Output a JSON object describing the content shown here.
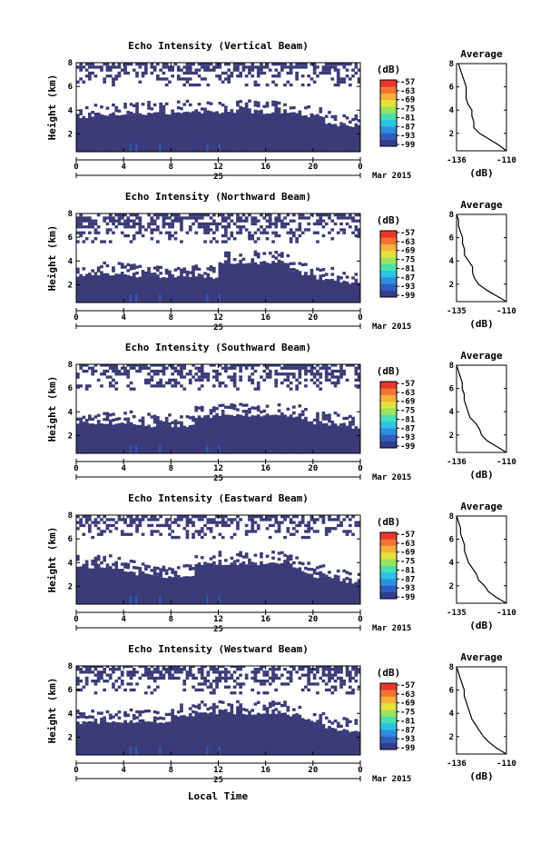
{
  "figure": {
    "x_axis_label": "Local Time",
    "date_label": "Mar 2015",
    "day_label": "25",
    "time_ticks": [
      "0",
      "4",
      "8",
      "12",
      "16",
      "20",
      "0"
    ],
    "height_ticks": [
      "2",
      "4",
      "6",
      "8"
    ],
    "height_label": "Height (km)",
    "colorbar_unit": "(dB)",
    "colorbar_ticks": [
      "-57",
      "-63",
      "-69",
      "-75",
      "-81",
      "-87",
      "-93",
      "-99"
    ],
    "average_title": "Average",
    "average_unit": "(dB)",
    "colors": {
      "echo": "#3a3b78",
      "colormap": [
        "#323d8e",
        "#2f5dbf",
        "#2c8fe0",
        "#2bc3e6",
        "#47e0b0",
        "#9be35b",
        "#e3e23b",
        "#f6b13a",
        "#f4742f",
        "#e8362a"
      ]
    }
  },
  "chart_data": [
    {
      "type": "heatmap",
      "title": "Echo Intensity (Vertical Beam)",
      "average_ticks": [
        "-136",
        "-110"
      ],
      "xlim": [
        0,
        24
      ],
      "ylim": [
        0.5,
        8
      ],
      "zlim": [
        -99,
        -57
      ],
      "low_layer_top_km": [
        3.4,
        3.5,
        3.5,
        3.6,
        3.6,
        3.6,
        3.7,
        3.7,
        3.8,
        3.8,
        3.8,
        3.8,
        3.8,
        3.8,
        3.8,
        3.8,
        3.8,
        3.8,
        3.7,
        3.5,
        3.2,
        2.9,
        2.7,
        2.6,
        2.6
      ],
      "upper_layer_km": [
        6.0,
        8.0
      ],
      "average_profile": {
        "height_km": [
          0.5,
          1,
          1.5,
          2,
          2.5,
          3,
          3.5,
          4,
          4.5,
          5,
          5.5,
          6,
          6.5,
          7,
          7.5,
          8
        ],
        "db": [
          -110,
          -114,
          -119,
          -124,
          -127,
          -127,
          -128,
          -128,
          -130,
          -131,
          -131,
          -131,
          -132,
          -133,
          -134,
          -135
        ]
      }
    },
    {
      "type": "heatmap",
      "title": "Echo Intensity (Northward Beam)",
      "average_ticks": [
        "-135",
        "-110"
      ],
      "xlim": [
        0,
        24
      ],
      "ylim": [
        0.5,
        8
      ],
      "zlim": [
        -99,
        -57
      ],
      "low_layer_top_km": [
        2.8,
        2.9,
        2.9,
        2.9,
        2.8,
        2.7,
        2.7,
        2.6,
        2.6,
        2.6,
        2.6,
        2.6,
        3.8,
        3.8,
        3.8,
        3.8,
        3.8,
        3.8,
        3.2,
        2.9,
        2.5,
        2.4,
        2.3,
        2.2,
        2.2
      ],
      "upper_layer_km": [
        5.5,
        8.0
      ],
      "average_profile": {
        "height_km": [
          0.5,
          1,
          1.5,
          2,
          2.5,
          3,
          3.5,
          4,
          4.5,
          5,
          5.5,
          6,
          6.5,
          7,
          7.5,
          8
        ],
        "db": [
          -110,
          -115,
          -120,
          -124,
          -126,
          -127,
          -127,
          -129,
          -131,
          -131,
          -132,
          -132,
          -133,
          -134,
          -134,
          -135
        ]
      }
    },
    {
      "type": "heatmap",
      "title": "Echo Intensity (Southward Beam)",
      "average_ticks": [
        "-136",
        "-110"
      ],
      "xlim": [
        0,
        24
      ],
      "ylim": [
        0.5,
        8
      ],
      "zlim": [
        -99,
        -57
      ],
      "low_layer_top_km": [
        2.9,
        3.0,
        3.0,
        3.0,
        3.0,
        2.9,
        2.8,
        2.8,
        2.8,
        2.8,
        3.6,
        3.6,
        3.7,
        3.7,
        3.7,
        3.7,
        3.7,
        3.7,
        3.6,
        3.3,
        3.0,
        2.9,
        2.8,
        2.7,
        2.7
      ],
      "upper_layer_km": [
        5.8,
        8.0
      ],
      "average_profile": {
        "height_km": [
          0.5,
          1,
          1.5,
          2,
          2.5,
          3,
          3.5,
          4,
          4.5,
          5,
          5.5,
          6,
          6.5,
          7,
          7.5,
          8
        ],
        "db": [
          -110,
          -115,
          -120,
          -123,
          -124,
          -126,
          -129,
          -130,
          -131,
          -132,
          -132,
          -133,
          -133,
          -134,
          -135,
          -136
        ]
      }
    },
    {
      "type": "heatmap",
      "title": "Echo Intensity (Eastward Beam)",
      "average_ticks": [
        "-135",
        "-110"
      ],
      "xlim": [
        0,
        24
      ],
      "ylim": [
        0.5,
        8
      ],
      "zlim": [
        -99,
        -57
      ],
      "low_layer_top_km": [
        3.6,
        3.6,
        3.6,
        3.6,
        3.2,
        3.0,
        2.9,
        2.8,
        2.8,
        2.8,
        3.9,
        3.9,
        3.9,
        3.9,
        3.9,
        3.9,
        3.9,
        3.9,
        3.6,
        3.1,
        2.8,
        2.6,
        2.4,
        2.3,
        2.3
      ],
      "upper_layer_km": [
        6.0,
        8.0
      ],
      "average_profile": {
        "height_km": [
          0.5,
          1,
          1.5,
          2,
          2.5,
          3,
          3.5,
          4,
          4.5,
          5,
          5.5,
          6,
          6.5,
          7,
          7.5,
          8
        ],
        "db": [
          -110,
          -115,
          -119,
          -121,
          -124,
          -125,
          -127,
          -129,
          -130,
          -131,
          -131,
          -132,
          -133,
          -133,
          -134,
          -135
        ]
      }
    },
    {
      "type": "heatmap",
      "title": "Echo Intensity (Westward Beam)",
      "average_ticks": [
        "-136",
        "-110"
      ],
      "xlim": [
        0,
        24
      ],
      "ylim": [
        0.5,
        8
      ],
      "zlim": [
        -99,
        -57
      ],
      "low_layer_top_km": [
        3.2,
        3.2,
        3.3,
        3.3,
        3.3,
        3.3,
        3.3,
        3.3,
        3.8,
        3.8,
        4.0,
        4.0,
        4.0,
        4.0,
        4.0,
        4.0,
        4.0,
        4.0,
        3.8,
        3.4,
        3.0,
        2.8,
        2.6,
        2.5,
        2.5
      ],
      "upper_layer_km": [
        5.6,
        8.0
      ],
      "average_profile": {
        "height_km": [
          0.5,
          1,
          1.5,
          2,
          2.5,
          3,
          3.5,
          4,
          4.5,
          5,
          5.5,
          6,
          6.5,
          7,
          7.5,
          8
        ],
        "db": [
          -110,
          -115,
          -119,
          -122,
          -124,
          -126,
          -128,
          -129,
          -130,
          -131,
          -132,
          -132,
          -133,
          -134,
          -135,
          -136
        ]
      }
    }
  ]
}
